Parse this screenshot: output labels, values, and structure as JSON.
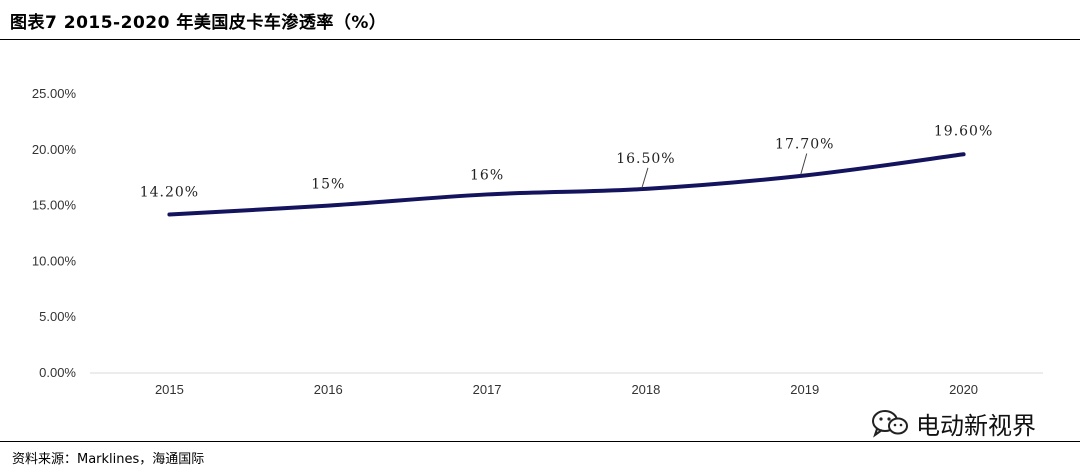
{
  "title": "图表7 2015-2020 年美国皮卡车渗透率（%）",
  "source": "资料来源：Marklines，海通国际",
  "watermark": {
    "text": "电动新视界",
    "icon": "wechat-icon"
  },
  "colors": {
    "line": "#14145e",
    "axis": "#d9d9d9",
    "rule": "#000000"
  },
  "chart_data": {
    "type": "line",
    "categories": [
      "2015",
      "2016",
      "2017",
      "2018",
      "2019",
      "2020"
    ],
    "series": [
      {
        "values": [
          14.2,
          15.0,
          16.0,
          16.5,
          17.7,
          19.6
        ],
        "labels": [
          "14.20%",
          "15%",
          "16%",
          "16.50%",
          "17.70%",
          "19.60%"
        ]
      }
    ],
    "yticks": [
      "0.00%",
      "5.00%",
      "10.00%",
      "15.00%",
      "20.00%",
      "25.00%"
    ],
    "ylim": [
      0,
      25
    ],
    "grid": false,
    "legend": "none"
  }
}
